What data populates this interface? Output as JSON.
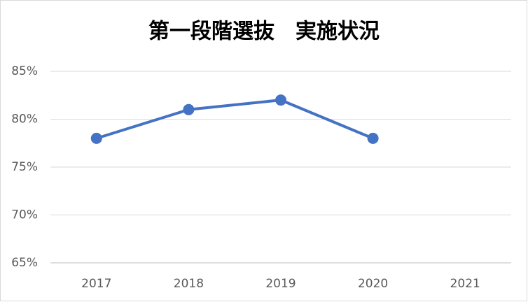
{
  "chart_data": {
    "type": "line",
    "title": "第一段階選抜　実施状況",
    "categories": [
      "2017",
      "2018",
      "2019",
      "2020",
      "2021"
    ],
    "series": [
      {
        "name": "実施状況",
        "color": "#4472c4",
        "values": [
          78,
          81,
          82,
          78,
          null
        ]
      }
    ],
    "ylim": [
      65,
      85
    ],
    "yticks": [
      {
        "value": 65,
        "label": "65%"
      },
      {
        "value": 70,
        "label": "70%"
      },
      {
        "value": 75,
        "label": "75%"
      },
      {
        "value": 80,
        "label": "80%"
      },
      {
        "value": 85,
        "label": "85%"
      }
    ],
    "grid": true
  }
}
